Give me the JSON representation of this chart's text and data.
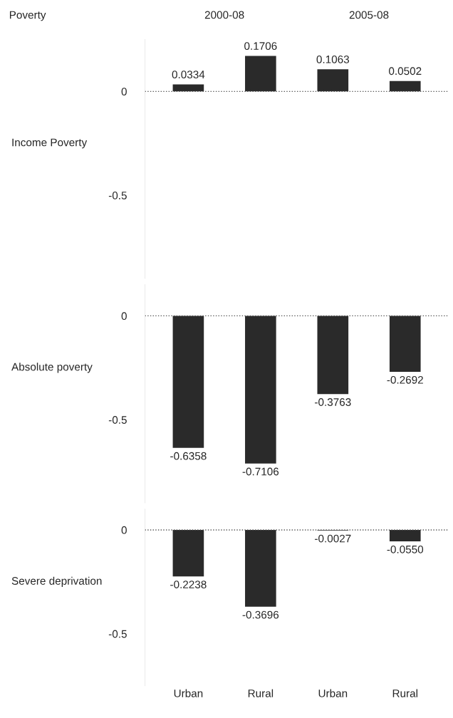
{
  "chart_data": [
    {
      "type": "bar",
      "title": "Poverty",
      "annotations": [
        "2000-08",
        "2005-08"
      ],
      "ylabel": "Income Poverty",
      "values": [
        0.0334,
        0.1706,
        0.1063,
        0.0502
      ],
      "value_labels": [
        "0.0334",
        "0.1706",
        "0.1063",
        "0.0502"
      ],
      "color": "#2a2a2a",
      "ylim": [
        -0.9,
        0.25
      ],
      "yticks": [
        0,
        -0.5
      ],
      "tick_labels": "y",
      "ref_lines": [
        {
          "axis": "y",
          "value": 0,
          "line_style": "dotted",
          "color": "#555555"
        }
      ],
      "grid": false,
      "legend": false
    },
    {
      "type": "bar",
      "ylabel": "Absolute poverty",
      "values": [
        -0.6358,
        -0.7106,
        -0.3763,
        -0.2692
      ],
      "value_labels": [
        "-0.6358",
        "-0.7106",
        "-0.3763",
        "-0.2692"
      ],
      "color": "#2a2a2a",
      "ylim": [
        -0.9,
        0.15
      ],
      "yticks": [
        0,
        -0.5
      ],
      "tick_labels": "y",
      "ref_lines": [
        {
          "axis": "y",
          "value": 0,
          "line_style": "dotted",
          "color": "#555555"
        }
      ],
      "grid": false,
      "legend": false
    },
    {
      "type": "bar",
      "ylabel": "Severe deprivation",
      "categories": [
        "Urban",
        "Rural",
        "Urban",
        "Rural"
      ],
      "values": [
        -0.2238,
        -0.3696,
        -0.0027,
        -0.055
      ],
      "value_labels": [
        "-0.2238",
        "-0.3696",
        "-0.0027",
        "-0.0550"
      ],
      "color": "#2a2a2a",
      "ylim": [
        -0.75,
        0.1
      ],
      "yticks": [
        0,
        -0.5
      ],
      "ref_lines": [
        {
          "axis": "y",
          "value": 0,
          "line_style": "dotted",
          "color": "#555555"
        }
      ],
      "grid": false,
      "legend": false
    }
  ]
}
